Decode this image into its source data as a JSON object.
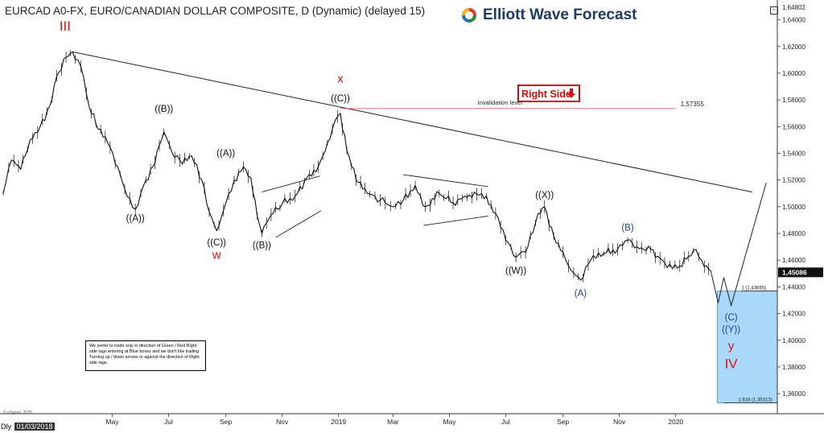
{
  "header": {
    "title": "EURCAD A0-FX, EURO/CANADIAN DOLLAR COMPOSITE, D (Dynamic) (delayed 15)",
    "logo_text": "Elliott Wave Forecast"
  },
  "note_text": "We prefer to trade only in direction of Green / Red Right side tags entering at Blue boxes and we don't like trading Turning up / down arrows or against the direction of Right side tags.",
  "copyright": "© eSignal, 2020",
  "date_box": {
    "year_prefix": "Dly",
    "date": "01/03/2018"
  },
  "colors": {
    "price": "#111111",
    "wave_black": "#111111",
    "wave_red": "#e11010",
    "wave_blue": "#1c3f9c",
    "blue_box_fill": "#aad8f8",
    "blue_box_stroke": "#5aa0d4",
    "invalidation_line": "#e06060",
    "right_side_tag": "#d01010"
  },
  "chart_data": {
    "type": "line",
    "title": "EURCAD A0-FX, EURO/CANADIAN DOLLAR COMPOSITE, D (Dynamic) (delayed 15)",
    "xlabel": "",
    "ylabel": "",
    "ylim": [
      1.345,
      1.65
    ],
    "x_range": [
      "2018-01-03",
      "2020-04-20"
    ],
    "x_ticks": [
      "May",
      "Jul",
      "Sep",
      "Nov",
      "2019",
      "Mar",
      "May",
      "Jul",
      "Sep",
      "Nov",
      "2020"
    ],
    "x_tick_dates": [
      "2018-05-01",
      "2018-07-01",
      "2018-09-01",
      "2018-11-01",
      "2019-01-01",
      "2019-03-01",
      "2019-05-01",
      "2019-07-01",
      "2019-09-01",
      "2019-11-01",
      "2020-01-01"
    ],
    "y_ticks": [
      1.36,
      1.38,
      1.4,
      1.42,
      1.44,
      1.46,
      1.48,
      1.5,
      1.52,
      1.54,
      1.56,
      1.58,
      1.6,
      1.62,
      1.64
    ],
    "y_tick_labels": [
      "1,36000",
      "1,38000",
      "1,40000",
      "1,42000",
      "1,44000",
      "1,46000",
      "1,48000",
      "1,50000",
      "1,52000",
      "1,54000",
      "1,56000",
      "1,58000",
      "1,60000",
      "1,62000",
      "1,64000"
    ],
    "top_price_label": "1,64802",
    "last_price_label": "1,45086",
    "grid": false,
    "series": [
      {
        "points": [
          [
            "2018-01-03",
            1.51
          ],
          [
            "2018-01-12",
            1.535
          ],
          [
            "2018-01-22",
            1.528
          ],
          [
            "2018-02-01",
            1.55
          ],
          [
            "2018-02-12",
            1.56
          ],
          [
            "2018-02-22",
            1.575
          ],
          [
            "2018-03-02",
            1.598
          ],
          [
            "2018-03-12",
            1.612
          ],
          [
            "2018-03-19",
            1.616
          ],
          [
            "2018-03-28",
            1.605
          ],
          [
            "2018-04-06",
            1.575
          ],
          [
            "2018-04-16",
            1.558
          ],
          [
            "2018-04-26",
            1.548
          ],
          [
            "2018-05-07",
            1.53
          ],
          [
            "2018-05-17",
            1.508
          ],
          [
            "2018-05-26",
            1.498
          ],
          [
            "2018-06-04",
            1.516
          ],
          [
            "2018-06-14",
            1.53
          ],
          [
            "2018-06-21",
            1.546
          ],
          [
            "2018-06-26",
            1.556
          ],
          [
            "2018-07-05",
            1.54
          ],
          [
            "2018-07-16",
            1.532
          ],
          [
            "2018-07-26",
            1.538
          ],
          [
            "2018-08-06",
            1.52
          ],
          [
            "2018-08-14",
            1.496
          ],
          [
            "2018-08-22",
            1.482
          ],
          [
            "2018-09-01",
            1.503
          ],
          [
            "2018-09-10",
            1.52
          ],
          [
            "2018-09-20",
            1.53
          ],
          [
            "2018-09-28",
            1.522
          ],
          [
            "2018-10-05",
            1.493
          ],
          [
            "2018-10-10",
            1.48
          ],
          [
            "2018-10-20",
            1.494
          ],
          [
            "2018-11-01",
            1.502
          ],
          [
            "2018-11-15",
            1.508
          ],
          [
            "2018-11-28",
            1.522
          ],
          [
            "2018-12-10",
            1.53
          ],
          [
            "2018-12-20",
            1.548
          ],
          [
            "2018-12-28",
            1.564
          ],
          [
            "2019-01-03",
            1.57
          ],
          [
            "2019-01-10",
            1.542
          ],
          [
            "2019-01-20",
            1.52
          ],
          [
            "2019-02-01",
            1.51
          ],
          [
            "2019-02-15",
            1.505
          ],
          [
            "2019-03-01",
            1.5
          ],
          [
            "2019-03-12",
            1.505
          ],
          [
            "2019-03-25",
            1.516
          ],
          [
            "2019-04-05",
            1.5
          ],
          [
            "2019-04-20",
            1.51
          ],
          [
            "2019-05-05",
            1.503
          ],
          [
            "2019-05-20",
            1.507
          ],
          [
            "2019-06-05",
            1.51
          ],
          [
            "2019-06-20",
            1.495
          ],
          [
            "2019-07-01",
            1.475
          ],
          [
            "2019-07-12",
            1.462
          ],
          [
            "2019-07-25",
            1.47
          ],
          [
            "2019-08-05",
            1.495
          ],
          [
            "2019-08-12",
            1.5
          ],
          [
            "2019-08-22",
            1.478
          ],
          [
            "2019-09-01",
            1.466
          ],
          [
            "2019-09-10",
            1.452
          ],
          [
            "2019-09-20",
            1.445
          ],
          [
            "2019-10-01",
            1.46
          ],
          [
            "2019-10-15",
            1.465
          ],
          [
            "2019-10-30",
            1.468
          ],
          [
            "2019-11-10",
            1.475
          ],
          [
            "2019-11-20",
            1.47
          ],
          [
            "2019-12-05",
            1.468
          ],
          [
            "2019-12-20",
            1.458
          ],
          [
            "2020-01-03",
            1.454
          ],
          [
            "2020-01-15",
            1.463
          ],
          [
            "2020-01-23",
            1.468
          ],
          [
            "2020-02-01",
            1.455
          ],
          [
            "2020-02-08",
            1.452
          ]
        ]
      }
    ],
    "projection": [
      [
        "2020-02-08",
        1.452
      ],
      [
        "2020-02-16",
        1.428
      ],
      [
        "2020-02-22",
        1.447
      ],
      [
        "2020-03-01",
        1.426
      ],
      [
        "2020-04-08",
        1.518
      ]
    ],
    "trendline": [
      [
        "2018-03-19",
        1.616
      ],
      [
        "2020-03-24",
        1.511
      ]
    ],
    "channels": [
      {
        "upper": [
          [
            "2018-10-10",
            1.511
          ],
          [
            "2018-12-12",
            1.523
          ]
        ],
        "lower": [
          [
            "2018-10-25",
            1.477
          ],
          [
            "2018-12-13",
            1.497
          ]
        ]
      },
      {
        "upper": [
          [
            "2019-03-12",
            1.524
          ],
          [
            "2019-06-12",
            1.515
          ]
        ],
        "lower": [
          [
            "2019-04-03",
            1.486
          ],
          [
            "2019-06-12",
            1.493
          ]
        ]
      }
    ],
    "invalidation": {
      "label": "Invalidation level",
      "value": 1.57355,
      "value_label": "1,57355",
      "x_start": "2019-01-03",
      "x_end": "2020-01-01"
    },
    "right_side_tag": {
      "label": "Right Side",
      "arrow": "down"
    },
    "blue_box": {
      "x_start": "2020-02-15",
      "x_end": "2020-04-20",
      "top": 1.43685,
      "bottom": 1.35313,
      "top_label": "1 (1,43685)",
      "bottom_label": "1.618 (1,35313)"
    },
    "wave_labels": [
      {
        "text": "III",
        "date": "2018-03-11",
        "value": 1.632,
        "color": "red"
      },
      {
        "text": "((A))",
        "date": "2018-05-26",
        "value": 1.489,
        "color": "black"
      },
      {
        "text": "((B))",
        "date": "2018-06-26",
        "value": 1.571,
        "color": "black"
      },
      {
        "text": "((C))",
        "date": "2018-08-22",
        "value": 1.471,
        "color": "black"
      },
      {
        "text": "w",
        "date": "2018-08-22",
        "value": 1.461,
        "color": "red"
      },
      {
        "text": "((A))",
        "date": "2018-09-01",
        "value": 1.538,
        "color": "black"
      },
      {
        "text": "((B))",
        "date": "2018-10-10",
        "value": 1.469,
        "color": "black"
      },
      {
        "text": "x",
        "date": "2019-01-03",
        "value": 1.593,
        "color": "red"
      },
      {
        "text": "((C))",
        "date": "2019-01-03",
        "value": 1.579,
        "color": "black"
      },
      {
        "text": "((X))",
        "date": "2019-08-12",
        "value": 1.5065,
        "color": "black"
      },
      {
        "text": "((W))",
        "date": "2019-07-12",
        "value": 1.45,
        "color": "black"
      },
      {
        "text": "(A)",
        "date": "2019-09-20",
        "value": 1.433,
        "color": "blue"
      },
      {
        "text": "(B)",
        "date": "2019-11-10",
        "value": 1.482,
        "color": "blue"
      },
      {
        "text": "(C)",
        "date": "2020-03-01",
        "value": 1.415,
        "color": "blue"
      },
      {
        "text": "((Y))",
        "date": "2020-03-01",
        "value": 1.406,
        "color": "blue"
      },
      {
        "text": "y",
        "date": "2020-03-01",
        "value": 1.393,
        "color": "red"
      },
      {
        "text": "IV",
        "date": "2020-03-01",
        "value": 1.379,
        "color": "red"
      }
    ]
  }
}
